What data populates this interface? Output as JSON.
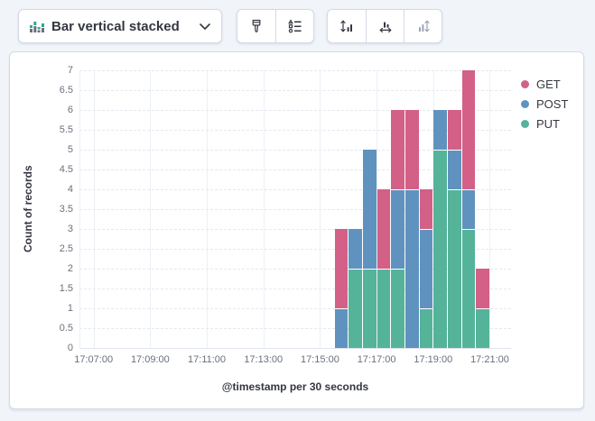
{
  "toolbar": {
    "chart_type_selector": {
      "label": "Bar vertical stacked",
      "icon": "bar-vertical-stacked-icon"
    },
    "style_group": {
      "visual_options_button": {
        "icon": "paint-brush-icon"
      },
      "legend_button": {
        "icon": "legend-values-icon"
      }
    },
    "axis_group": {
      "left_axis_button": {
        "icon": "axis-left-icon",
        "disabled": false
      },
      "bottom_axis_button": {
        "icon": "axis-bottom-icon",
        "disabled": false
      },
      "right_axis_button": {
        "icon": "axis-right-icon",
        "disabled": true
      }
    }
  },
  "chart_data": {
    "type": "bar",
    "stacked": true,
    "orientation": "vertical",
    "title": "",
    "xlabel": "@timestamp per 30 seconds",
    "ylabel": "Count of records",
    "ylim": [
      0,
      7
    ],
    "y_ticks": [
      0,
      0.5,
      1,
      1.5,
      2,
      2.5,
      3,
      3.5,
      4,
      4.5,
      5,
      5.5,
      6,
      6.5,
      7
    ],
    "x_ticks": [
      "17:07:00",
      "17:09:00",
      "17:11:00",
      "17:13:00",
      "17:15:00",
      "17:17:00",
      "17:19:00",
      "17:21:00"
    ],
    "x_domain": [
      "17:06:30",
      "17:21:45"
    ],
    "bucket_seconds": 30,
    "grid": true,
    "legend_position": "right",
    "x": [
      "17:15:30",
      "17:16:00",
      "17:16:30",
      "17:17:00",
      "17:17:30",
      "17:18:00",
      "17:18:30",
      "17:19:00",
      "17:19:30",
      "17:20:00",
      "17:20:30"
    ],
    "series": [
      {
        "name": "GET",
        "color": "#D36086",
        "values": [
          2,
          0,
          0,
          2,
          2,
          2,
          1,
          0,
          1,
          3,
          1
        ]
      },
      {
        "name": "POST",
        "color": "#6092C0",
        "values": [
          1,
          1,
          3,
          0,
          2,
          4,
          2,
          1,
          1,
          1,
          0
        ]
      },
      {
        "name": "PUT",
        "color": "#54B399",
        "values": [
          0,
          2,
          2,
          2,
          2,
          0,
          1,
          5,
          4,
          3,
          1
        ]
      }
    ],
    "stack_order_bottom_to_top": [
      "PUT",
      "POST",
      "GET"
    ]
  },
  "colors": {
    "page_background": "#f1f4f9",
    "panel_background": "#ffffff",
    "border": "#d3dae6",
    "text_dark": "#343741",
    "text_muted": "#69707d",
    "grid_line": "#e4e9f1",
    "icon_disabled": "#9aa4b5",
    "icon_green": "#2DA891",
    "icon_gray": "#69707d"
  }
}
